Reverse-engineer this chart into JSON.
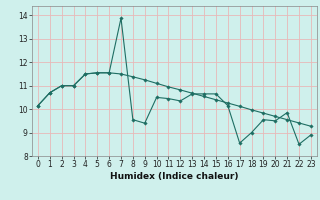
{
  "title": "",
  "xlabel": "Humidex (Indice chaleur)",
  "xlim": [
    -0.5,
    23.5
  ],
  "ylim": [
    8,
    14.4
  ],
  "yticks": [
    8,
    9,
    10,
    11,
    12,
    13,
    14
  ],
  "xticks": [
    0,
    1,
    2,
    3,
    4,
    5,
    6,
    7,
    8,
    9,
    10,
    11,
    12,
    13,
    14,
    15,
    16,
    17,
    18,
    19,
    20,
    21,
    22,
    23
  ],
  "bg_color": "#cff0ec",
  "grid_color": "#e8b8b8",
  "line_color": "#1e6e63",
  "line1_x": [
    0,
    1,
    2,
    3,
    4,
    5,
    6,
    7,
    8,
    9,
    10,
    11,
    12,
    13,
    14,
    15,
    16,
    17,
    18,
    19,
    20,
    21,
    22,
    23
  ],
  "line1_y": [
    10.15,
    10.7,
    11.0,
    11.0,
    11.5,
    11.55,
    11.55,
    13.88,
    9.55,
    9.4,
    10.5,
    10.45,
    10.35,
    10.65,
    10.65,
    10.65,
    10.15,
    8.55,
    9.0,
    9.55,
    9.5,
    9.85,
    8.5,
    8.9
  ],
  "line2_x": [
    0,
    1,
    2,
    3,
    4,
    5,
    6,
    7,
    8,
    9,
    10,
    11,
    12,
    13,
    14,
    15,
    16,
    17,
    18,
    19,
    20,
    21,
    22,
    23
  ],
  "line2_y": [
    10.15,
    10.7,
    11.0,
    11.0,
    11.5,
    11.55,
    11.55,
    11.5,
    11.38,
    11.25,
    11.1,
    10.95,
    10.82,
    10.68,
    10.54,
    10.4,
    10.26,
    10.12,
    9.97,
    9.83,
    9.69,
    9.55,
    9.41,
    9.27
  ],
  "marker": "D",
  "markersize": 1.8,
  "linewidth": 0.8,
  "tick_fontsize": 5.5,
  "xlabel_fontsize": 6.5
}
